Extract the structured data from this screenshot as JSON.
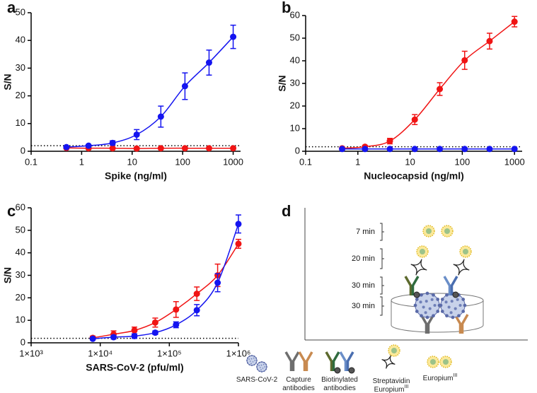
{
  "chart_data": [
    {
      "type": "line",
      "panel": "a",
      "xlabel": "Spike (ng/ml)",
      "ylabel": "S/N",
      "xscale": "log",
      "xlim": [
        0.1,
        1400
      ],
      "xticks": [
        0.1,
        1,
        10,
        100,
        1000
      ],
      "ylim": [
        0,
        50
      ],
      "yticks": [
        0,
        10,
        20,
        30,
        40,
        50
      ],
      "threshold": 2,
      "x": [
        0.5,
        1.37,
        4.1,
        12.3,
        37,
        111,
        333,
        1000
      ],
      "series": [
        {
          "color": "#f01414",
          "values": [
            1.2,
            1.1,
            1.1,
            1.0,
            1.1,
            1.1,
            1.1,
            1.1
          ],
          "errors": [
            0.2,
            0.2,
            0.2,
            0.2,
            0.2,
            0.2,
            0.2,
            0.2
          ]
        },
        {
          "color": "#1414f0",
          "values": [
            1.5,
            2.0,
            3.0,
            6.0,
            12.5,
            23.5,
            32,
            41.3
          ],
          "errors": [
            0.3,
            0.4,
            0.8,
            1.8,
            3.8,
            4.8,
            4.5,
            4.2
          ]
        }
      ]
    },
    {
      "type": "line",
      "panel": "b",
      "xlabel": "Nucleocapsid (ng/ml)",
      "ylabel": "S/N",
      "xscale": "log",
      "xlim": [
        0.1,
        1400
      ],
      "xticks": [
        0.1,
        1,
        10,
        100,
        1000
      ],
      "ylim": [
        0,
        60
      ],
      "yticks": [
        0,
        10,
        20,
        30,
        40,
        50,
        60
      ],
      "threshold": 2,
      "x": [
        0.5,
        1.37,
        4.1,
        12.3,
        37,
        111,
        333,
        1000
      ],
      "series": [
        {
          "color": "#f01414",
          "values": [
            1.3,
            2.0,
            4.5,
            14,
            27.5,
            40.2,
            48.7,
            57.3
          ],
          "errors": [
            0.3,
            0.5,
            1.2,
            2.2,
            2.8,
            4,
            3.5,
            2.3
          ]
        },
        {
          "color": "#1414f0",
          "values": [
            1.0,
            1.0,
            1.0,
            1.0,
            1.0,
            1.0,
            1.0,
            1.0
          ],
          "errors": [
            0.2,
            0.2,
            0.2,
            0.2,
            0.2,
            0.2,
            0.2,
            0.2
          ]
        }
      ]
    },
    {
      "type": "line",
      "panel": "c",
      "xlabel": "SARS-CoV-2 (pfu/ml)",
      "ylabel": "S/N",
      "xscale": "log",
      "xlim": [
        1000,
        1000000
      ],
      "xticks": [
        {
          "value": 1000,
          "label": "1×10³"
        },
        {
          "value": 10000,
          "label": "1×10⁴"
        },
        {
          "value": 100000,
          "label": "1×10⁵"
        },
        {
          "value": 1000000,
          "label": "1×10⁶"
        }
      ],
      "ylim": [
        0,
        60
      ],
      "yticks": [
        0,
        10,
        20,
        30,
        40,
        50,
        60
      ],
      "threshold": 2,
      "x": [
        7800,
        15600,
        31250,
        62500,
        125000,
        250000,
        500000,
        1000000
      ],
      "series": [
        {
          "color": "#f01414",
          "values": [
            2.2,
            3.8,
            5.5,
            9,
            14.8,
            21.8,
            30,
            44
          ],
          "errors": [
            0.8,
            1.5,
            1.5,
            2,
            3.5,
            3,
            5,
            2
          ]
        },
        {
          "color": "#1414f0",
          "values": [
            1.8,
            2.5,
            3,
            4.5,
            8,
            14.5,
            26.7,
            52.8
          ],
          "errors": [
            0.5,
            0.8,
            1,
            0.8,
            1.3,
            2.5,
            4,
            4
          ]
        }
      ]
    }
  ],
  "diagram": {
    "panel": "d",
    "times": [
      "7 min",
      "20 min",
      "30 min",
      "30 min"
    ],
    "legend": [
      {
        "lines": [
          "SARS-CoV-2"
        ]
      },
      {
        "lines": [
          "Capture",
          "antibodies"
        ]
      },
      {
        "lines": [
          "Biotinylated",
          "antibodies"
        ]
      },
      {
        "lines": [
          "Streptavidin",
          "Europium"
        ],
        "sup": "III"
      },
      {
        "lines": [
          "Europium"
        ],
        "sup": "III"
      }
    ]
  }
}
